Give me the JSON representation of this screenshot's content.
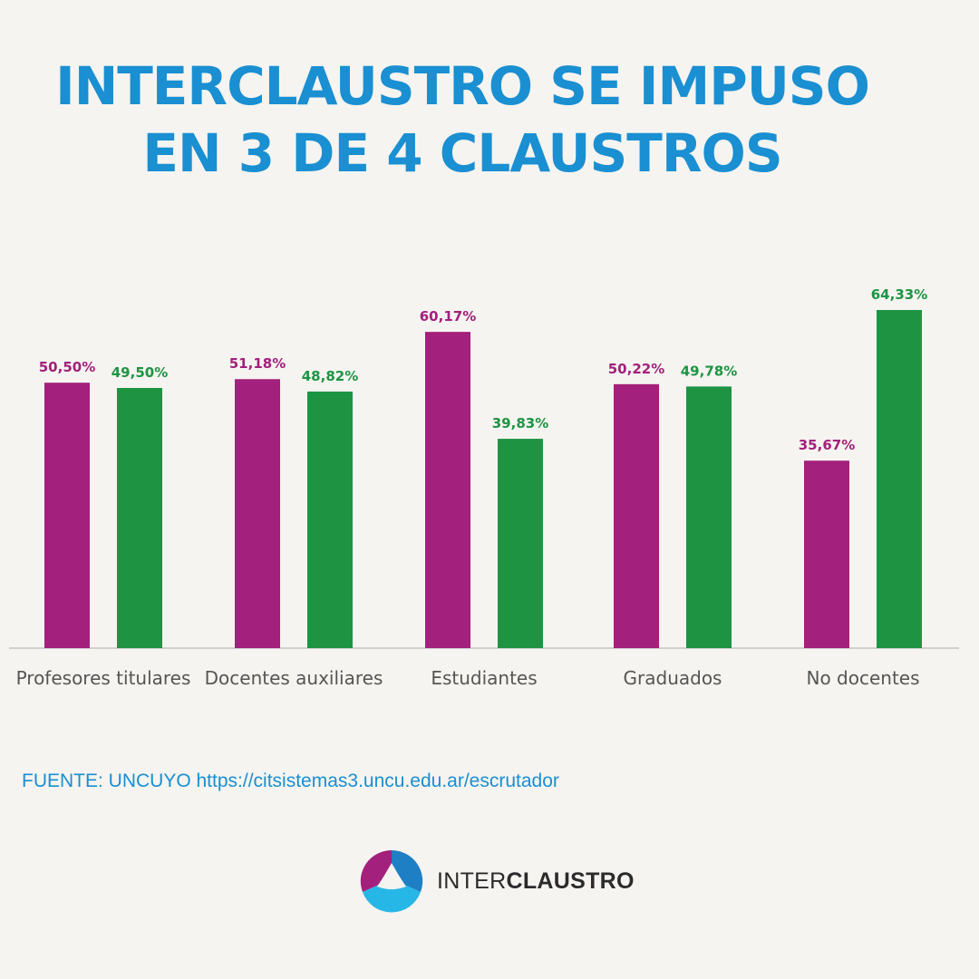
{
  "header": {
    "title_line1": "INTERCLAUSTRO SE IMPUSO",
    "title_line2": "EN 3 DE 4 CLAUSTROS"
  },
  "colors": {
    "title": "#1a8fd1",
    "series_1": "#a3207c",
    "series_2": "#1e9443",
    "label_series_1": "#a3207c",
    "label_series_2": "#1e9443",
    "axis": "#d0d0d0",
    "category_text": "#555555"
  },
  "chart_data": {
    "type": "bar",
    "categories": [
      "Profesores titulares",
      "Docentes auxiliares",
      "Estudiantes",
      "Graduados",
      "No docentes"
    ],
    "series": [
      {
        "values": [
          50.5,
          51.18,
          60.17,
          50.22,
          35.67
        ],
        "labels": [
          "50,50%",
          "51,18%",
          "60,17%",
          "50,22%",
          "35,67%"
        ]
      },
      {
        "values": [
          49.5,
          48.82,
          39.83,
          49.78,
          64.33
        ],
        "labels": [
          "49,50%",
          "48,82%",
          "39,83%",
          "49,78%",
          "64,33%"
        ]
      }
    ],
    "ylim": [
      0,
      70
    ],
    "grid": false,
    "legend": "none"
  },
  "footer": {
    "source": "FUENTE: UNCUYO https://citsistemas3.uncu.edu.ar/escrutador",
    "brand_light": "INTER",
    "brand_bold": "CLAUSTRO",
    "logo_icon": "interclaustro-logo-icon"
  }
}
